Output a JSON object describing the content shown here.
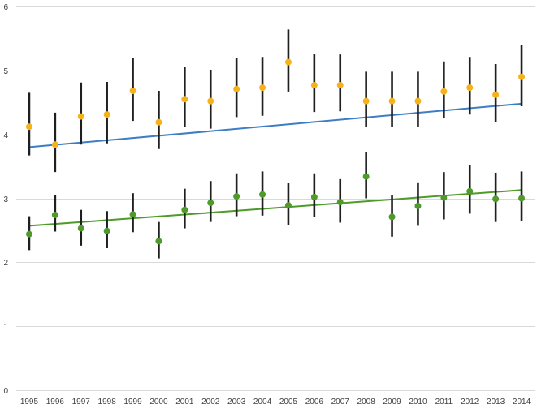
{
  "chart_data": {
    "type": "scatter",
    "title": "",
    "xlabel": "",
    "ylabel": "",
    "ylim": [
      0,
      6
    ],
    "yticks": [
      "0",
      "1",
      "2",
      "3",
      "4",
      "5",
      "6"
    ],
    "grid": true,
    "legend": "none",
    "categories": [
      "1995",
      "1996",
      "1997",
      "1998",
      "1999",
      "2000",
      "2001",
      "2002",
      "2003",
      "2004",
      "2005",
      "2006",
      "2007",
      "2008",
      "2009",
      "2010",
      "2011",
      "2012",
      "2013",
      "2014"
    ],
    "series": [
      {
        "color": "#f5b21a",
        "values": [
          4.12,
          3.84,
          4.28,
          4.31,
          4.68,
          4.19,
          4.55,
          4.52,
          4.71,
          4.73,
          5.13,
          4.77,
          4.77,
          4.52,
          4.52,
          4.52,
          4.67,
          4.73,
          4.62,
          4.9
        ],
        "error_low": [
          3.67,
          3.41,
          3.84,
          3.86,
          4.21,
          3.77,
          4.11,
          4.09,
          4.27,
          4.29,
          4.67,
          4.35,
          4.36,
          4.12,
          4.12,
          4.12,
          4.25,
          4.31,
          4.19,
          4.44
        ],
        "error_high": [
          4.65,
          4.34,
          4.81,
          4.82,
          5.19,
          4.68,
          5.05,
          5.01,
          5.2,
          5.21,
          5.64,
          5.26,
          5.25,
          4.98,
          4.98,
          4.98,
          5.14,
          5.21,
          5.1,
          5.4
        ],
        "trend_color": "#3d7dc4",
        "trend": [
          3.8,
          4.48
        ]
      },
      {
        "color": "#4e9a2a",
        "values": [
          2.44,
          2.74,
          2.53,
          2.49,
          2.75,
          2.33,
          2.82,
          2.93,
          3.03,
          3.06,
          2.89,
          3.02,
          2.94,
          3.34,
          2.71,
          2.88,
          3.01,
          3.11,
          2.99,
          3.0
        ],
        "error_low": [
          2.19,
          2.48,
          2.26,
          2.22,
          2.47,
          2.06,
          2.53,
          2.63,
          2.72,
          2.73,
          2.58,
          2.71,
          2.62,
          3.0,
          2.4,
          2.57,
          2.67,
          2.76,
          2.63,
          2.64
        ],
        "error_high": [
          2.72,
          3.05,
          2.82,
          2.8,
          3.08,
          2.63,
          3.15,
          3.27,
          3.39,
          3.42,
          3.24,
          3.39,
          3.3,
          3.72,
          3.05,
          3.25,
          3.41,
          3.52,
          3.4,
          3.42
        ],
        "trend_color": "#4e9a2a",
        "trend": [
          2.57,
          3.13
        ]
      }
    ]
  }
}
